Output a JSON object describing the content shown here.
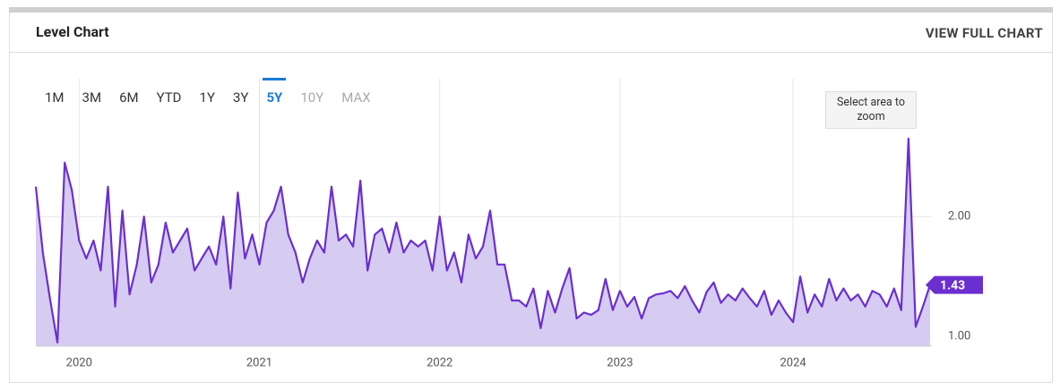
{
  "header": {
    "title": "Level Chart",
    "link": "VIEW FULL CHART"
  },
  "range_buttons": [
    "1M",
    "3M",
    "6M",
    "YTD",
    "1Y",
    "3Y",
    "5Y",
    "10Y",
    "MAX"
  ],
  "zoom_hint": "Select area to zoom",
  "chart_data": {
    "type": "area",
    "categories": [
      null,
      null,
      null,
      null,
      null,
      null,
      "2020",
      null,
      null,
      null,
      null,
      null,
      null,
      null,
      null,
      null,
      null,
      null,
      null,
      null,
      null,
      null,
      null,
      null,
      null,
      null,
      null,
      null,
      null,
      null,
      null,
      "2021",
      null,
      null,
      null,
      null,
      null,
      null,
      null,
      null,
      null,
      null,
      null,
      null,
      null,
      null,
      null,
      null,
      null,
      null,
      null,
      null,
      null,
      null,
      null,
      null,
      "2022",
      null,
      null,
      null,
      null,
      null,
      null,
      null,
      null,
      null,
      null,
      null,
      null,
      null,
      null,
      null,
      null,
      null,
      null,
      null,
      null,
      null,
      null,
      null,
      null,
      "2023",
      null,
      null,
      null,
      null,
      null,
      null,
      null,
      null,
      null,
      null,
      null,
      null,
      null,
      null,
      null,
      null,
      null,
      null,
      null,
      null,
      null,
      null,
      null,
      "2024",
      null,
      null,
      null,
      null,
      null,
      null,
      null,
      null,
      null,
      null,
      null,
      null,
      null,
      null,
      null,
      null,
      null,
      null,
      null
    ],
    "values": [
      2.25,
      1.69,
      1.3,
      0.95,
      2.45,
      2.22,
      1.8,
      1.65,
      1.8,
      1.55,
      2.25,
      1.25,
      2.05,
      1.35,
      1.6,
      2.0,
      1.45,
      1.6,
      1.95,
      1.7,
      1.8,
      1.9,
      1.55,
      1.65,
      1.75,
      1.6,
      2.0,
      1.4,
      2.2,
      1.65,
      1.85,
      1.6,
      1.95,
      2.05,
      2.25,
      1.85,
      1.7,
      1.45,
      1.65,
      1.8,
      1.7,
      2.25,
      1.8,
      1.85,
      1.75,
      2.3,
      1.55,
      1.85,
      1.9,
      1.7,
      1.95,
      1.7,
      1.8,
      1.75,
      1.8,
      1.55,
      2.0,
      1.55,
      1.7,
      1.45,
      1.85,
      1.65,
      1.75,
      2.05,
      1.6,
      1.6,
      1.3,
      1.3,
      1.25,
      1.4,
      1.07,
      1.38,
      1.2,
      1.4,
      1.57,
      1.15,
      1.2,
      1.18,
      1.22,
      1.48,
      1.22,
      1.38,
      1.25,
      1.33,
      1.15,
      1.32,
      1.35,
      1.36,
      1.38,
      1.32,
      1.42,
      1.3,
      1.2,
      1.37,
      1.45,
      1.28,
      1.35,
      1.3,
      1.4,
      1.32,
      1.25,
      1.38,
      1.18,
      1.3,
      1.2,
      1.12,
      1.5,
      1.2,
      1.35,
      1.25,
      1.48,
      1.3,
      1.4,
      1.3,
      1.35,
      1.25,
      1.38,
      1.35,
      1.25,
      1.4,
      1.22,
      2.65,
      1.08,
      1.25,
      1.43
    ],
    "color": "#6b2fd0",
    "ylim": [
      0.92,
      3.15
    ],
    "yticks": [
      {
        "value": 1,
        "label": "1.00"
      },
      {
        "value": 2,
        "label": "2.00"
      }
    ],
    "grid": true
  }
}
